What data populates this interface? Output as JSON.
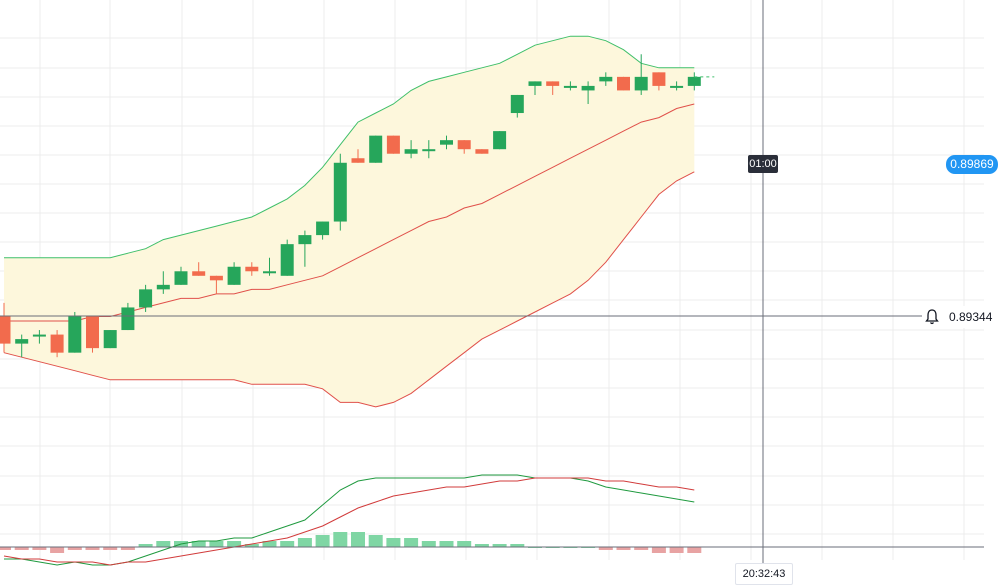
{
  "price_badge": "0.89869",
  "countdown": "01:00",
  "crosshair_price": "0.89344",
  "crosshair_time": "20:32:43",
  "colors": {
    "up": "#26a65b",
    "down": "#f26b4d",
    "band_upper": "#3fbf6a",
    "band_lower": "#e0504a",
    "band_fill": "#fdf7dc",
    "macd_line": "#1f9a3f",
    "signal_line": "#d13b3b",
    "hist_up": "#7fd6a4",
    "hist_down": "#e8a3a3",
    "badge": "#2196f3"
  },
  "icons": {
    "alert": "bell-icon"
  },
  "chart_data": {
    "type": "candlestick",
    "candles": [
      {
        "o": 0.8932,
        "h": 0.8935,
        "l": 0.8924,
        "c": 0.8926
      },
      {
        "o": 0.8926,
        "h": 0.8928,
        "l": 0.8923,
        "c": 0.8927
      },
      {
        "o": 0.8928,
        "h": 0.8929,
        "l": 0.8926,
        "c": 0.8928
      },
      {
        "o": 0.8928,
        "h": 0.8929,
        "l": 0.8923,
        "c": 0.8924
      },
      {
        "o": 0.8924,
        "h": 0.8933,
        "l": 0.8924,
        "c": 0.8932
      },
      {
        "o": 0.8932,
        "h": 0.8932,
        "l": 0.8924,
        "c": 0.8925
      },
      {
        "o": 0.8925,
        "h": 0.8929,
        "l": 0.8925,
        "c": 0.8929
      },
      {
        "o": 0.8929,
        "h": 0.8935,
        "l": 0.8929,
        "c": 0.8934
      },
      {
        "o": 0.8934,
        "h": 0.8939,
        "l": 0.8933,
        "c": 0.8938
      },
      {
        "o": 0.8938,
        "h": 0.8942,
        "l": 0.8937,
        "c": 0.8939
      },
      {
        "o": 0.8939,
        "h": 0.8943,
        "l": 0.8939,
        "c": 0.8942
      },
      {
        "o": 0.8942,
        "h": 0.8944,
        "l": 0.8941,
        "c": 0.8941
      },
      {
        "o": 0.8941,
        "h": 0.8941,
        "l": 0.8937,
        "c": 0.894
      },
      {
        "o": 0.8939,
        "h": 0.8944,
        "l": 0.8939,
        "c": 0.8943
      },
      {
        "o": 0.8943,
        "h": 0.8944,
        "l": 0.8941,
        "c": 0.8942
      },
      {
        "o": 0.8942,
        "h": 0.8945,
        "l": 0.8941,
        "c": 0.8942
      },
      {
        "o": 0.8941,
        "h": 0.8949,
        "l": 0.8941,
        "c": 0.8948
      },
      {
        "o": 0.8948,
        "h": 0.8951,
        "l": 0.8943,
        "c": 0.895
      },
      {
        "o": 0.895,
        "h": 0.8953,
        "l": 0.8949,
        "c": 0.8953
      },
      {
        "o": 0.8953,
        "h": 0.8968,
        "l": 0.8951,
        "c": 0.8966
      },
      {
        "o": 0.8967,
        "h": 0.8969,
        "l": 0.8966,
        "c": 0.8966
      },
      {
        "o": 0.8966,
        "h": 0.8972,
        "l": 0.8966,
        "c": 0.8972
      },
      {
        "o": 0.8972,
        "h": 0.8972,
        "l": 0.8968,
        "c": 0.8968
      },
      {
        "o": 0.8968,
        "h": 0.8971,
        "l": 0.8967,
        "c": 0.8969
      },
      {
        "o": 0.8969,
        "h": 0.8971,
        "l": 0.8967,
        "c": 0.8969
      },
      {
        "o": 0.897,
        "h": 0.8972,
        "l": 0.8969,
        "c": 0.8971
      },
      {
        "o": 0.8971,
        "h": 0.8971,
        "l": 0.8968,
        "c": 0.8969
      },
      {
        "o": 0.8969,
        "h": 0.8969,
        "l": 0.8968,
        "c": 0.8968
      },
      {
        "o": 0.8969,
        "h": 0.8973,
        "l": 0.8969,
        "c": 0.8973
      },
      {
        "o": 0.8977,
        "h": 0.8981,
        "l": 0.8976,
        "c": 0.8981
      },
      {
        "o": 0.8983,
        "h": 0.8984,
        "l": 0.8981,
        "c": 0.8984
      },
      {
        "o": 0.8984,
        "h": 0.8984,
        "l": 0.8981,
        "c": 0.8983
      },
      {
        "o": 0.8983,
        "h": 0.8984,
        "l": 0.8982,
        "c": 0.8983
      },
      {
        "o": 0.8982,
        "h": 0.8984,
        "l": 0.8979,
        "c": 0.8983
      },
      {
        "o": 0.8984,
        "h": 0.8986,
        "l": 0.8983,
        "c": 0.8985
      },
      {
        "o": 0.8985,
        "h": 0.8985,
        "l": 0.8982,
        "c": 0.8982
      },
      {
        "o": 0.8982,
        "h": 0.899,
        "l": 0.8981,
        "c": 0.8985
      },
      {
        "o": 0.8986,
        "h": 0.8986,
        "l": 0.8982,
        "c": 0.8983
      },
      {
        "o": 0.8983,
        "h": 0.8984,
        "l": 0.8982,
        "c": 0.8983
      },
      {
        "o": 0.8983,
        "h": 0.8986,
        "l": 0.8982,
        "c": 0.8985
      }
    ],
    "bollinger": {
      "upper": [
        0.8945,
        0.8945,
        0.8945,
        0.8945,
        0.8945,
        0.8945,
        0.8945,
        0.8946,
        0.8947,
        0.8949,
        0.895,
        0.8951,
        0.8952,
        0.8953,
        0.8954,
        0.8956,
        0.8958,
        0.8961,
        0.8965,
        0.897,
        0.8975,
        0.8977,
        0.8979,
        0.8982,
        0.8984,
        0.8985,
        0.8986,
        0.8987,
        0.8988,
        0.899,
        0.8992,
        0.8993,
        0.8994,
        0.8994,
        0.8993,
        0.8991,
        0.8988,
        0.8987,
        0.8987,
        0.8987
      ],
      "middle": [
        0.8931,
        0.8931,
        0.8931,
        0.8931,
        0.8931,
        0.8932,
        0.8932,
        0.8933,
        0.8934,
        0.8935,
        0.8936,
        0.8936,
        0.8937,
        0.8937,
        0.8938,
        0.8938,
        0.8939,
        0.894,
        0.8941,
        0.8943,
        0.8945,
        0.8947,
        0.8949,
        0.8951,
        0.8953,
        0.8954,
        0.8956,
        0.8957,
        0.8959,
        0.8961,
        0.8963,
        0.8965,
        0.8967,
        0.8969,
        0.8971,
        0.8973,
        0.8975,
        0.8976,
        0.8978,
        0.8979
      ],
      "lower": [
        0.8924,
        0.8923,
        0.8922,
        0.8921,
        0.892,
        0.8919,
        0.8918,
        0.8918,
        0.8918,
        0.8918,
        0.8918,
        0.8918,
        0.8918,
        0.8918,
        0.8917,
        0.8917,
        0.8917,
        0.8917,
        0.8916,
        0.8913,
        0.8913,
        0.8912,
        0.8913,
        0.8915,
        0.8918,
        0.8921,
        0.8924,
        0.8927,
        0.8929,
        0.8931,
        0.8933,
        0.8935,
        0.8937,
        0.894,
        0.8944,
        0.8949,
        0.8954,
        0.8959,
        0.8962,
        0.8964
      ]
    },
    "macd": {
      "macd": [
        -4,
        -4,
        -5,
        -6,
        -5,
        -6,
        -6,
        -5,
        -3,
        -1,
        1,
        2,
        2,
        3,
        3,
        5,
        7,
        9,
        14,
        19,
        22,
        23,
        23,
        23,
        23,
        23,
        23,
        24,
        24,
        24,
        23,
        23,
        23,
        22,
        20,
        19,
        18,
        17,
        16,
        15
      ],
      "signal": [
        -3,
        -4,
        -4,
        -5,
        -5,
        -5,
        -6,
        -5,
        -5,
        -4,
        -3,
        -2,
        -1,
        0,
        1,
        2,
        3,
        5,
        7,
        10,
        13,
        15,
        17,
        18,
        19,
        20,
        20,
        21,
        22,
        22,
        23,
        23,
        23,
        23,
        22,
        22,
        21,
        20,
        20,
        19
      ],
      "hist": [
        -1,
        -1,
        -1,
        -2,
        -1,
        -1,
        -1,
        -1,
        1,
        2,
        2,
        2,
        2,
        2,
        1,
        2,
        2,
        3,
        4,
        5,
        5,
        4,
        3,
        3,
        2,
        2,
        2,
        1,
        1,
        1,
        0,
        0,
        0,
        0,
        -1,
        -1,
        -1,
        -2,
        -2,
        -2
      ]
    },
    "price_axis_range": [
      0.8908,
      0.9002
    ],
    "grid": true
  }
}
